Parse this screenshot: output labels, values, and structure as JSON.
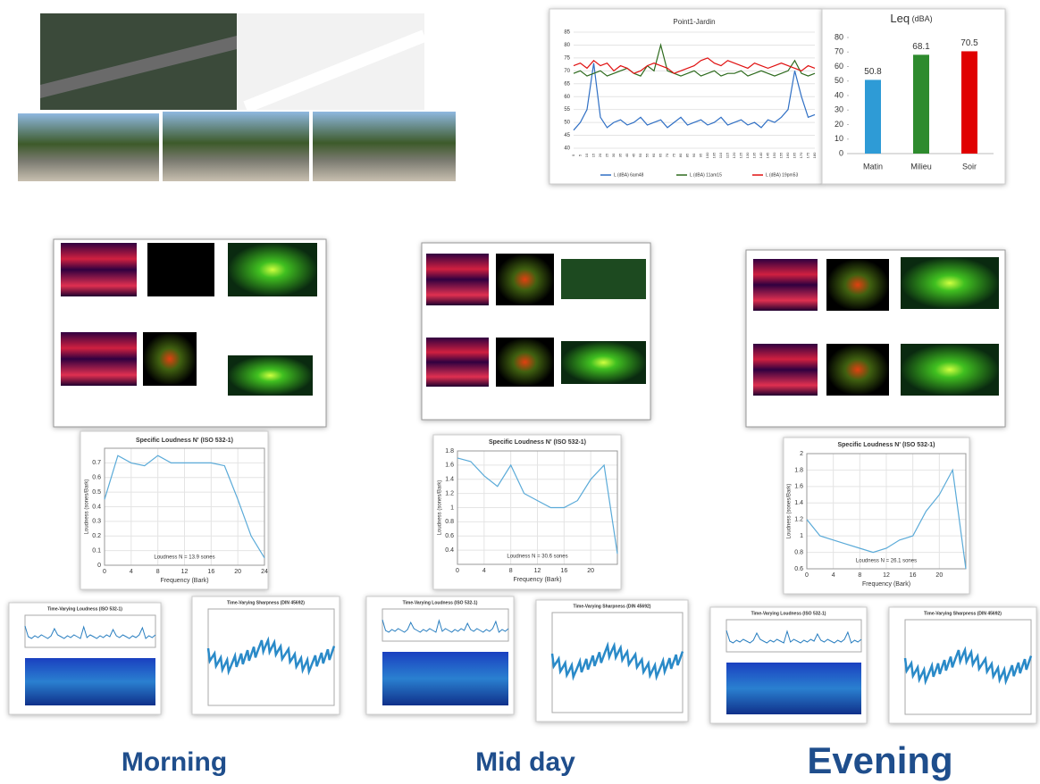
{
  "chart_data": [
    {
      "type": "line",
      "title": "Point1-Jardin",
      "x": [
        0,
        5,
        10,
        15,
        20,
        25,
        30,
        35,
        40,
        45,
        50,
        55,
        60,
        65,
        70,
        75,
        80,
        85,
        90,
        95,
        100,
        105,
        110,
        115,
        120,
        125,
        130,
        135,
        140,
        145,
        150,
        155,
        160,
        165,
        170,
        175,
        180
      ],
      "xlim": [
        0,
        180
      ],
      "xticks": [
        0,
        5,
        10,
        15,
        20,
        25,
        30,
        35,
        40,
        45,
        50,
        55,
        60,
        65,
        70,
        75,
        80,
        85,
        90,
        95,
        100,
        105,
        110,
        115,
        120,
        125,
        130,
        135,
        140,
        145,
        150,
        155,
        160,
        165,
        170,
        175,
        180
      ],
      "ylim": [
        40,
        85
      ],
      "yticks": [
        40,
        45,
        50,
        55,
        60,
        65,
        70,
        75,
        80,
        85
      ],
      "grid": true,
      "legend": "bottom",
      "series": [
        {
          "name": "L (dBA) 6am48",
          "color": "#2f6fc4",
          "values": [
            47,
            50,
            55,
            73,
            52,
            48,
            50,
            51,
            49,
            50,
            52,
            49,
            50,
            51,
            48,
            50,
            52,
            49,
            50,
            51,
            49,
            50,
            52,
            49,
            50,
            51,
            49,
            50,
            48,
            51,
            50,
            52,
            55,
            70,
            60,
            52,
            53
          ]
        },
        {
          "name": "L (dBA) 11am15",
          "color": "#2e6b1e",
          "values": [
            69,
            70,
            68,
            69,
            70,
            68,
            69,
            70,
            71,
            69,
            68,
            72,
            70,
            80,
            70,
            69,
            68,
            69,
            70,
            68,
            69,
            70,
            68,
            69,
            69,
            70,
            68,
            69,
            70,
            69,
            68,
            69,
            70,
            74,
            69,
            68,
            69
          ]
        },
        {
          "name": "L (dBA) 19pm53",
          "color": "#e01010",
          "values": [
            72,
            73,
            71,
            74,
            72,
            73,
            70,
            72,
            71,
            69,
            70,
            72,
            73,
            72,
            71,
            69,
            70,
            71,
            72,
            74,
            75,
            73,
            72,
            74,
            73,
            72,
            71,
            73,
            72,
            71,
            72,
            73,
            72,
            71,
            70,
            72,
            71
          ]
        }
      ]
    },
    {
      "type": "bar",
      "title": "Leq",
      "subtitle": "(dBA)",
      "categories": [
        "Matin",
        "Milieu",
        "Soir"
      ],
      "values": [
        50.8,
        68.1,
        70.5
      ],
      "colors": [
        "#2e9bd6",
        "#2e8b2e",
        "#e00000"
      ],
      "ylim": [
        0,
        80
      ],
      "yticks": [
        0,
        10,
        20,
        30,
        40,
        50,
        60,
        70,
        80
      ],
      "grid": false
    },
    {
      "type": "line",
      "title": "Specific Loudness N' (ISO 532-1)",
      "annotation": "Loudness N = 13.9 sones",
      "x_label": "Frequency (Bark)",
      "y_label": "Loudness (sones/Bark)",
      "color": "#5aaad8",
      "grid": true,
      "x": [
        0,
        2,
        4,
        6,
        8,
        10,
        12,
        14,
        16,
        18,
        20,
        22,
        24
      ],
      "values": [
        0.45,
        0.75,
        0.7,
        0.68,
        0.75,
        0.7,
        0.7,
        0.7,
        0.7,
        0.68,
        0.45,
        0.2,
        0.05
      ],
      "xlim": [
        0,
        24
      ],
      "xticks": [
        0,
        4,
        8,
        12,
        16,
        20,
        24
      ],
      "ylim": [
        0,
        0.8
      ],
      "yticks": [
        0,
        0.1,
        0.2,
        0.3,
        0.4,
        0.5,
        0.6,
        0.7
      ]
    },
    {
      "type": "line",
      "title": "Specific Loudness N' (ISO 532-1)",
      "annotation": "Loudness N = 30.6 sones",
      "x_label": "Frequency (Bark)",
      "y_label": "Loudness (sones/Bark)",
      "color": "#5aaad8",
      "grid": true,
      "x": [
        0,
        2,
        4,
        6,
        8,
        10,
        12,
        14,
        16,
        18,
        20,
        22,
        24
      ],
      "values": [
        1.7,
        1.65,
        1.45,
        1.3,
        1.6,
        1.2,
        1.1,
        1.0,
        1.0,
        1.1,
        1.4,
        1.6,
        0.35
      ],
      "xlim": [
        0,
        24
      ],
      "xticks": [
        0,
        4,
        8,
        12,
        16,
        20
      ],
      "ylim": [
        0.2,
        1.8
      ],
      "yticks": [
        0.4,
        0.6,
        0.8,
        1,
        1.2,
        1.4,
        1.6,
        1.8
      ]
    },
    {
      "type": "line",
      "title": "Specific Loudness N' (ISO 532-1)",
      "annotation": "Loudness N = 26.1 sones",
      "x_label": "Frequency (Bark)",
      "y_label": "Loudness (sones/Bark)",
      "color": "#5aaad8",
      "grid": true,
      "x": [
        0,
        2,
        4,
        6,
        8,
        10,
        12,
        14,
        16,
        18,
        20,
        22,
        24
      ],
      "values": [
        1.2,
        1.0,
        0.95,
        0.9,
        0.85,
        0.8,
        0.85,
        0.95,
        1.0,
        1.3,
        1.5,
        1.8,
        0.6
      ],
      "xlim": [
        0,
        24
      ],
      "xticks": [
        0,
        4,
        8,
        12,
        16,
        20
      ],
      "ylim": [
        0.6,
        2
      ],
      "yticks": [
        0.6,
        0.8,
        1,
        1.2,
        1.4,
        1.6,
        1.8,
        2
      ]
    }
  ],
  "time_varying_panels": [
    {
      "title": "Time-Varying Loudness (ISO 532-1)"
    },
    {
      "title": "Time-Varying Sharpness (DIN 45692)"
    },
    {
      "title": "Time-Varying Loudness (ISO 532-1)"
    },
    {
      "title": "Time-Varying Sharpness (DIN 45692)"
    },
    {
      "title": "Time-Varying Loudness (ISO 532-1)"
    },
    {
      "title": "Time-Varying Sharpness (DIN 45692)"
    }
  ],
  "period_labels": [
    "Morning",
    "Mid day",
    "Evening"
  ]
}
